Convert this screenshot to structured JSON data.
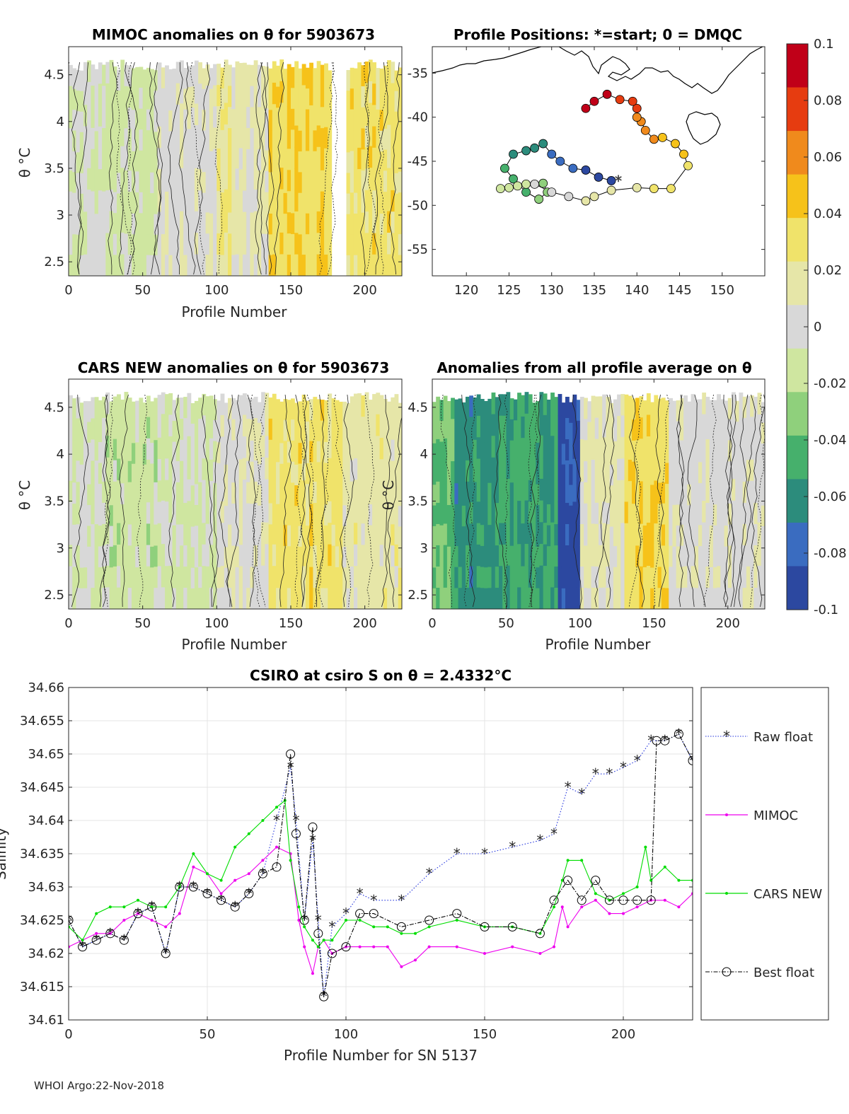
{
  "figure": {
    "footer": "WHOI Argo:22-Nov-2018",
    "colorbar": {
      "ticks": [
        "0.1",
        "0.08",
        "0.06",
        "0.04",
        "0.02",
        "0",
        "-0.02",
        "-0.04",
        "-0.06",
        "-0.08",
        "-0.1"
      ],
      "colors": [
        "#c00018",
        "#e63c10",
        "#f08a1c",
        "#f6c21a",
        "#f0e36a",
        "#e6e6a8",
        "#d8d8d8",
        "#cfe6a0",
        "#8fd07c",
        "#46b06c",
        "#2c8c7c",
        "#3a6cc0",
        "#2c48a0"
      ]
    }
  },
  "panels": {
    "p1": {
      "title": "MIMOC anomalies on θ  for 5903673",
      "ylabel": "θ °C",
      "xlabel": "Profile Number",
      "xticks": [
        "0",
        "50",
        "100",
        "150",
        "200"
      ],
      "yticks": [
        "4.5",
        "4",
        "3.5",
        "3",
        "2.5"
      ]
    },
    "p2": {
      "title": "Profile Positions: *=start; 0 = DMQC",
      "xticks": [
        "120",
        "125",
        "130",
        "135",
        "140",
        "145",
        "150"
      ],
      "yticks": [
        "-35",
        "-40",
        "-45",
        "-50",
        "-55"
      ]
    },
    "p3": {
      "title": "CARS NEW anomalies on θ for 5903673",
      "ylabel": "θ °C",
      "xlabel": "Profile Number",
      "xticks": [
        "0",
        "50",
        "100",
        "150",
        "200"
      ],
      "yticks": [
        "4.5",
        "4",
        "3.5",
        "3",
        "2.5"
      ]
    },
    "p4": {
      "title": "Anomalies from all profile average on θ",
      "ylabel": "θ °C",
      "xlabel": "Profile Number",
      "xticks": [
        "0",
        "50",
        "100",
        "150",
        "200"
      ],
      "yticks": [
        "4.5",
        "4",
        "3.5",
        "3",
        "2.5"
      ]
    },
    "p5": {
      "title": "CSIRO at csiro S on θ = 2.4332°C",
      "xlabel": "Profile Number for SN 5137",
      "ylabel": "Salinity",
      "xticks": [
        "0",
        "50",
        "100",
        "150",
        "200"
      ],
      "yticks": [
        "34.66",
        "34.655",
        "34.65",
        "34.645",
        "34.64",
        "34.635",
        "34.63",
        "34.625",
        "34.62",
        "34.615",
        "34.61"
      ],
      "legend": [
        "Raw float",
        "MIMOC",
        "CARS NEW",
        "Best float"
      ]
    }
  },
  "chart_data": [
    {
      "type": "heatmap",
      "title": "MIMOC anomalies on θ  for 5903673",
      "xlabel": "Profile Number",
      "ylabel": "θ °C",
      "xlim": [
        0,
        225
      ],
      "ylim": [
        2.35,
        4.8
      ],
      "column_groups": [
        {
          "x": [
            0,
            25
          ],
          "value": -0.005,
          "note": "mixed grey/yellow/green with dense contours"
        },
        {
          "x": [
            25,
            60
          ],
          "value": -0.012
        },
        {
          "x": [
            60,
            100
          ],
          "value": 0.005
        },
        {
          "x": [
            100,
            110
          ],
          "value": 0.025
        },
        {
          "x": [
            110,
            135
          ],
          "value": 0.012
        },
        {
          "x": [
            135,
            178
          ],
          "value": 0.035
        },
        {
          "x": [
            187,
            225
          ],
          "value": 0.03
        }
      ]
    },
    {
      "type": "scatter",
      "title": "Profile Positions: *=start; 0 = DMQC",
      "xlim": [
        116,
        155
      ],
      "ylim": [
        -58,
        -32
      ],
      "color_by": "profile_number",
      "track_lon": [
        137,
        135.5,
        134,
        132.5,
        131,
        130,
        129,
        128,
        127,
        125.5,
        124.5,
        125.5,
        127,
        128.5,
        129.5,
        129,
        127,
        125,
        124,
        126,
        128,
        130,
        132,
        134,
        135,
        137,
        140,
        142,
        144,
        146,
        145.5,
        144.5,
        143,
        142,
        141,
        140.5,
        140,
        140,
        139.5,
        138,
        136.5,
        135,
        134
      ],
      "track_lat": [
        -47.2,
        -46.8,
        -46,
        -45.8,
        -45,
        -44.2,
        -43,
        -43.5,
        -43.8,
        -44.2,
        -45.8,
        -47,
        -48.5,
        -49.3,
        -48.5,
        -47.5,
        -47.6,
        -48,
        -48.1,
        -47.8,
        -47.6,
        -48.5,
        -49,
        -49.5,
        -49,
        -48.3,
        -48,
        -48.1,
        -48.1,
        -45.5,
        -44.2,
        -43,
        -42.3,
        -42.5,
        -41.5,
        -40.5,
        -40,
        -39,
        -38.2,
        -38,
        -37.4,
        -38.2,
        -39
      ]
    },
    {
      "type": "heatmap",
      "title": "CARS NEW anomalies on θ for 5903673",
      "xlabel": "Profile Number",
      "ylabel": "θ °C",
      "xlim": [
        0,
        225
      ],
      "ylim": [
        2.35,
        4.8
      ],
      "column_groups": [
        {
          "x": [
            0,
            25
          ],
          "value": -0.005
        },
        {
          "x": [
            25,
            60
          ],
          "value": -0.015
        },
        {
          "x": [
            60,
            100
          ],
          "value": -0.01
        },
        {
          "x": [
            100,
            135
          ],
          "value": 0.005
        },
        {
          "x": [
            135,
            185
          ],
          "value": 0.03
        },
        {
          "x": [
            185,
            225
          ],
          "value": 0.015
        }
      ]
    },
    {
      "type": "heatmap",
      "title": "Anomalies from all profile average on θ",
      "xlabel": "Profile Number",
      "ylabel": "θ °C",
      "xlim": [
        0,
        225
      ],
      "ylim": [
        2.35,
        4.8
      ],
      "column_groups": [
        {
          "x": [
            0,
            15
          ],
          "value": -0.04
        },
        {
          "x": [
            15,
            45
          ],
          "value": -0.06
        },
        {
          "x": [
            45,
            85
          ],
          "value": -0.05
        },
        {
          "x": [
            85,
            100
          ],
          "value": -0.09
        },
        {
          "x": [
            100,
            130
          ],
          "value": 0.01
        },
        {
          "x": [
            130,
            160
          ],
          "value": 0.035
        },
        {
          "x": [
            160,
            225
          ],
          "value": 0.003
        }
      ]
    },
    {
      "type": "line",
      "title": "CSIRO at csiro S on θ = 2.4332°C",
      "xlabel": "Profile Number for SN 5137",
      "ylabel": "Salinity",
      "xlim": [
        0,
        225
      ],
      "ylim": [
        34.61,
        34.66
      ],
      "series": [
        {
          "name": "Raw float",
          "x": [
            0,
            5,
            10,
            15,
            20,
            25,
            30,
            35,
            40,
            45,
            50,
            55,
            60,
            65,
            70,
            75,
            80,
            82,
            85,
            88,
            90,
            92,
            95,
            100,
            105,
            110,
            120,
            130,
            140,
            150,
            160,
            170,
            175,
            180,
            185,
            190,
            195,
            200,
            205,
            210,
            215,
            220,
            225
          ],
          "y": [
            34.625,
            34.621,
            34.622,
            34.623,
            34.622,
            34.626,
            34.627,
            34.62,
            34.63,
            34.63,
            34.629,
            34.628,
            34.627,
            34.629,
            34.632,
            34.64,
            34.648,
            34.64,
            34.625,
            34.637,
            34.625,
            34.6135,
            34.624,
            34.626,
            34.629,
            34.628,
            34.628,
            34.632,
            34.635,
            34.635,
            34.636,
            34.637,
            34.638,
            34.645,
            34.644,
            34.647,
            34.647,
            34.648,
            34.649,
            34.652,
            34.652,
            34.653,
            34.649
          ]
        },
        {
          "name": "MIMOC",
          "x": [
            0,
            5,
            10,
            15,
            20,
            25,
            30,
            35,
            40,
            45,
            50,
            55,
            60,
            65,
            70,
            75,
            80,
            83,
            85,
            88,
            90,
            92,
            95,
            100,
            105,
            110,
            115,
            120,
            125,
            130,
            140,
            150,
            160,
            170,
            175,
            178,
            180,
            185,
            190,
            195,
            200,
            205,
            210,
            215,
            220,
            225
          ],
          "y": [
            34.621,
            34.622,
            34.623,
            34.623,
            34.625,
            34.626,
            34.625,
            34.624,
            34.626,
            34.633,
            34.632,
            34.629,
            34.631,
            34.632,
            34.634,
            34.636,
            34.635,
            34.625,
            34.621,
            34.617,
            34.621,
            34.622,
            34.62,
            34.621,
            34.621,
            34.621,
            34.621,
            34.618,
            34.619,
            34.621,
            34.621,
            34.62,
            34.621,
            34.62,
            34.621,
            34.627,
            34.624,
            34.627,
            34.628,
            34.626,
            34.626,
            34.627,
            34.628,
            34.628,
            34.627,
            34.629
          ]
        },
        {
          "name": "CARS NEW",
          "x": [
            0,
            5,
            10,
            15,
            20,
            25,
            30,
            35,
            40,
            45,
            50,
            55,
            60,
            65,
            70,
            75,
            78,
            80,
            83,
            85,
            88,
            90,
            92,
            95,
            100,
            105,
            110,
            115,
            120,
            125,
            130,
            140,
            150,
            160,
            170,
            175,
            178,
            180,
            185,
            190,
            195,
            200,
            205,
            208,
            210,
            215,
            220,
            225
          ],
          "y": [
            34.624,
            34.622,
            34.626,
            34.627,
            34.627,
            34.628,
            34.627,
            34.627,
            34.63,
            34.635,
            34.632,
            34.631,
            34.636,
            34.638,
            34.64,
            34.642,
            34.643,
            34.634,
            34.627,
            34.624,
            34.622,
            34.621,
            34.622,
            34.622,
            34.625,
            34.625,
            34.624,
            34.624,
            34.623,
            34.623,
            34.624,
            34.625,
            34.624,
            34.624,
            34.623,
            34.627,
            34.631,
            34.634,
            34.634,
            34.629,
            34.628,
            34.629,
            34.63,
            34.636,
            34.631,
            34.633,
            34.631,
            34.631
          ]
        },
        {
          "name": "Best float",
          "x": [
            0,
            5,
            10,
            15,
            20,
            25,
            30,
            35,
            40,
            45,
            50,
            55,
            60,
            65,
            70,
            75,
            80,
            82,
            85,
            88,
            90,
            92,
            95,
            100,
            105,
            110,
            120,
            130,
            140,
            150,
            160,
            170,
            175,
            180,
            185,
            190,
            195,
            200,
            205,
            210,
            212,
            215,
            220,
            225
          ],
          "y": [
            34.625,
            34.621,
            34.622,
            34.623,
            34.622,
            34.626,
            34.627,
            34.62,
            34.63,
            34.63,
            34.629,
            34.628,
            34.627,
            34.629,
            34.632,
            34.633,
            34.65,
            34.638,
            34.625,
            34.639,
            34.623,
            34.6135,
            34.62,
            34.621,
            34.626,
            34.626,
            34.624,
            34.625,
            34.626,
            34.624,
            34.624,
            34.623,
            34.628,
            34.631,
            34.628,
            34.631,
            34.628,
            34.628,
            34.628,
            34.628,
            34.652,
            34.652,
            34.653,
            34.649
          ]
        }
      ]
    }
  ]
}
